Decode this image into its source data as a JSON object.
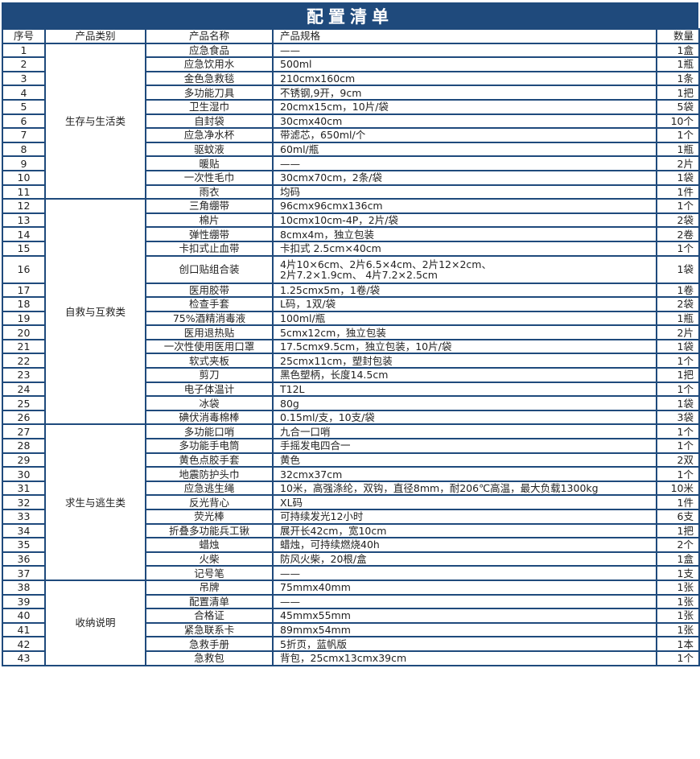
{
  "title": "配置清单",
  "headers": {
    "no": "序号",
    "category": "产品类别",
    "name": "产品名称",
    "spec": "产品规格",
    "qty": "数量"
  },
  "colors": {
    "border": "#1f4a7c",
    "title_bg": "#1f4a7c"
  },
  "categories": [
    {
      "label": "生存与生活类",
      "rows": 11
    },
    {
      "label": "自救与互救类",
      "rows": 15
    },
    {
      "label": "求生与逃生类",
      "rows": 11
    },
    {
      "label": "收纳说明",
      "rows": 6
    }
  ],
  "rows": [
    {
      "no": "1",
      "name": "应急食品",
      "spec": "——",
      "qty": "1盒"
    },
    {
      "no": "2",
      "name": "应急饮用水",
      "spec": "500ml",
      "qty": "1瓶"
    },
    {
      "no": "3",
      "name": "金色急救毯",
      "spec": "210cmx160cm",
      "qty": "1条"
    },
    {
      "no": "4",
      "name": "多功能刀具",
      "spec": "不锈钢,9开，9cm",
      "qty": "1把"
    },
    {
      "no": "5",
      "name": "卫生湿巾",
      "spec": "20cmx15cm，10片/袋",
      "qty": "5袋"
    },
    {
      "no": "6",
      "name": "自封袋",
      "spec": "30cmx40cm",
      "qty": "10个"
    },
    {
      "no": "7",
      "name": "应急净水杯",
      "spec": "带滤芯，650ml/个",
      "qty": "1个"
    },
    {
      "no": "8",
      "name": "驱蚊液",
      "spec": "60ml/瓶",
      "qty": "1瓶"
    },
    {
      "no": "9",
      "name": "暖贴",
      "spec": "——",
      "qty": "2片"
    },
    {
      "no": "10",
      "name": "一次性毛巾",
      "spec": "30cmx70cm，2条/袋",
      "qty": "1袋"
    },
    {
      "no": "11",
      "name": "雨衣",
      "spec": "均码",
      "qty": "1件"
    },
    {
      "no": "12",
      "name": "三角绷带",
      "spec": "96cmx96cmx136cm",
      "qty": "1个"
    },
    {
      "no": "13",
      "name": "棉片",
      "spec": "10cmx10cm-4P，2片/袋",
      "qty": "2袋"
    },
    {
      "no": "14",
      "name": "弹性绷带",
      "spec": "8cmx4m，独立包装",
      "qty": "2卷"
    },
    {
      "no": "15",
      "name": "卡扣式止血带",
      "spec": "卡扣式 2.5cm×40cm",
      "qty": "1个"
    },
    {
      "no": "16",
      "name": "创口贴组合装",
      "spec": "4片10×6cm、2片6.5×4cm、2片12×2cm、",
      "spec2": "2片7.2×1.9cm、 4片7.2×2.5cm",
      "qty": "1袋"
    },
    {
      "no": "17",
      "name": "医用胶带",
      "spec": "1.25cmx5m，1卷/袋",
      "qty": "1卷"
    },
    {
      "no": "18",
      "name": "检查手套",
      "spec": "L码，1双/袋",
      "qty": "2袋"
    },
    {
      "no": "19",
      "name": "75%酒精消毒液",
      "spec": "100ml/瓶",
      "qty": "1瓶"
    },
    {
      "no": "20",
      "name": "医用退热贴",
      "spec": "5cmx12cm，独立包装",
      "qty": "2片"
    },
    {
      "no": "21",
      "name": "一次性使用医用口罩",
      "spec": "17.5cmx9.5cm，独立包装，10片/袋",
      "qty": "1袋"
    },
    {
      "no": "22",
      "name": "软式夹板",
      "spec": "25cmx11cm，塑封包装",
      "qty": "1个"
    },
    {
      "no": "23",
      "name": "剪刀",
      "spec": "黑色塑柄，长度14.5cm",
      "qty": "1把"
    },
    {
      "no": "24",
      "name": "电子体温计",
      "spec": "T12L",
      "qty": "1个"
    },
    {
      "no": "25",
      "name": "冰袋",
      "spec": "80g",
      "qty": "1袋"
    },
    {
      "no": "26",
      "name": "碘伏消毒棉棒",
      "spec": "0.15ml/支，10支/袋",
      "qty": "3袋"
    },
    {
      "no": "27",
      "name": "多功能口哨",
      "spec": "九合一口哨",
      "qty": "1个"
    },
    {
      "no": "28",
      "name": "多功能手电筒",
      "spec": "手摇发电四合一",
      "qty": "1个"
    },
    {
      "no": "29",
      "name": "黄色点胶手套",
      "spec": "黄色",
      "qty": "2双"
    },
    {
      "no": "30",
      "name": "地震防护头巾",
      "spec": "32cmx37cm",
      "qty": "1个"
    },
    {
      "no": "31",
      "name": "应急逃生绳",
      "spec": "10米，高强涤纶，双钩，直径8mm，耐206℃高温，最大负载1300kg",
      "qty": "10米"
    },
    {
      "no": "32",
      "name": "反光背心",
      "spec": "XL码",
      "qty": "1件"
    },
    {
      "no": "33",
      "name": "荧光棒",
      "spec": "可持续发光12小时",
      "qty": "6支"
    },
    {
      "no": "34",
      "name": "折叠多功能兵工锹",
      "spec": "展开长42cm，宽10cm",
      "qty": "1把"
    },
    {
      "no": "35",
      "name": "蜡烛",
      "spec": "蜡烛，可持续燃烧40h",
      "qty": "2个"
    },
    {
      "no": "36",
      "name": "火柴",
      "spec": "防风火柴，20根/盒",
      "qty": "1盒"
    },
    {
      "no": "37",
      "name": "记号笔",
      "spec": "——",
      "qty": "1支"
    },
    {
      "no": "38",
      "name": "吊牌",
      "spec": "75mmx40mm",
      "qty": "1张"
    },
    {
      "no": "39",
      "name": "配置清单",
      "spec": "——",
      "qty": "1张"
    },
    {
      "no": "40",
      "name": "合格证",
      "spec": "45mmx55mm",
      "qty": "1张"
    },
    {
      "no": "41",
      "name": "紧急联系卡",
      "spec": "89mmx54mm",
      "qty": "1张"
    },
    {
      "no": "42",
      "name": "急救手册",
      "spec": "5折页，蓝帆版",
      "qty": "1本"
    },
    {
      "no": "43",
      "name": "急救包",
      "spec": "背包，25cmx13cmx39cm",
      "qty": "1个"
    }
  ]
}
